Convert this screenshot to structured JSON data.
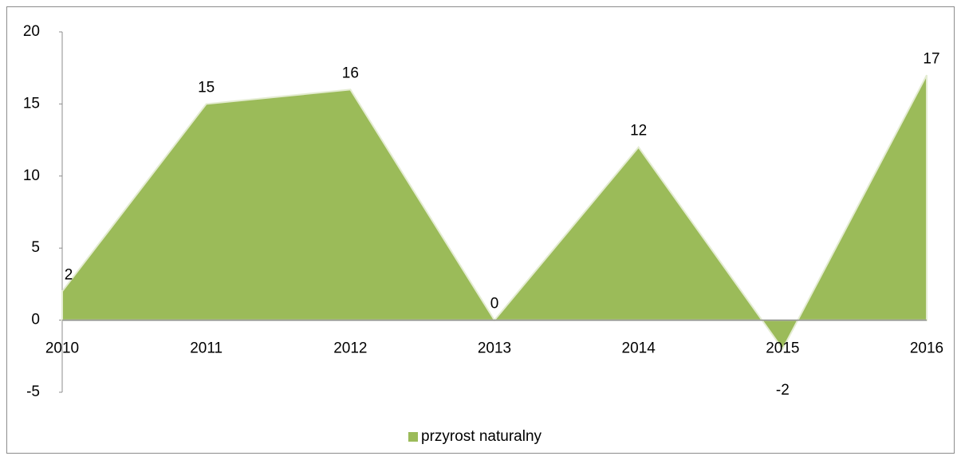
{
  "chart_data": {
    "type": "area",
    "categories": [
      "2010",
      "2011",
      "2012",
      "2013",
      "2014",
      "2015",
      "2016"
    ],
    "series": [
      {
        "name": "przyrost naturalny",
        "color": "#9bbb59",
        "values": [
          2,
          15,
          16,
          0,
          12,
          -2,
          17
        ]
      }
    ],
    "ylim": [
      -5,
      20
    ],
    "yticks": [
      -5,
      0,
      5,
      10,
      15,
      20
    ],
    "grid": false,
    "legend": "bottom"
  }
}
